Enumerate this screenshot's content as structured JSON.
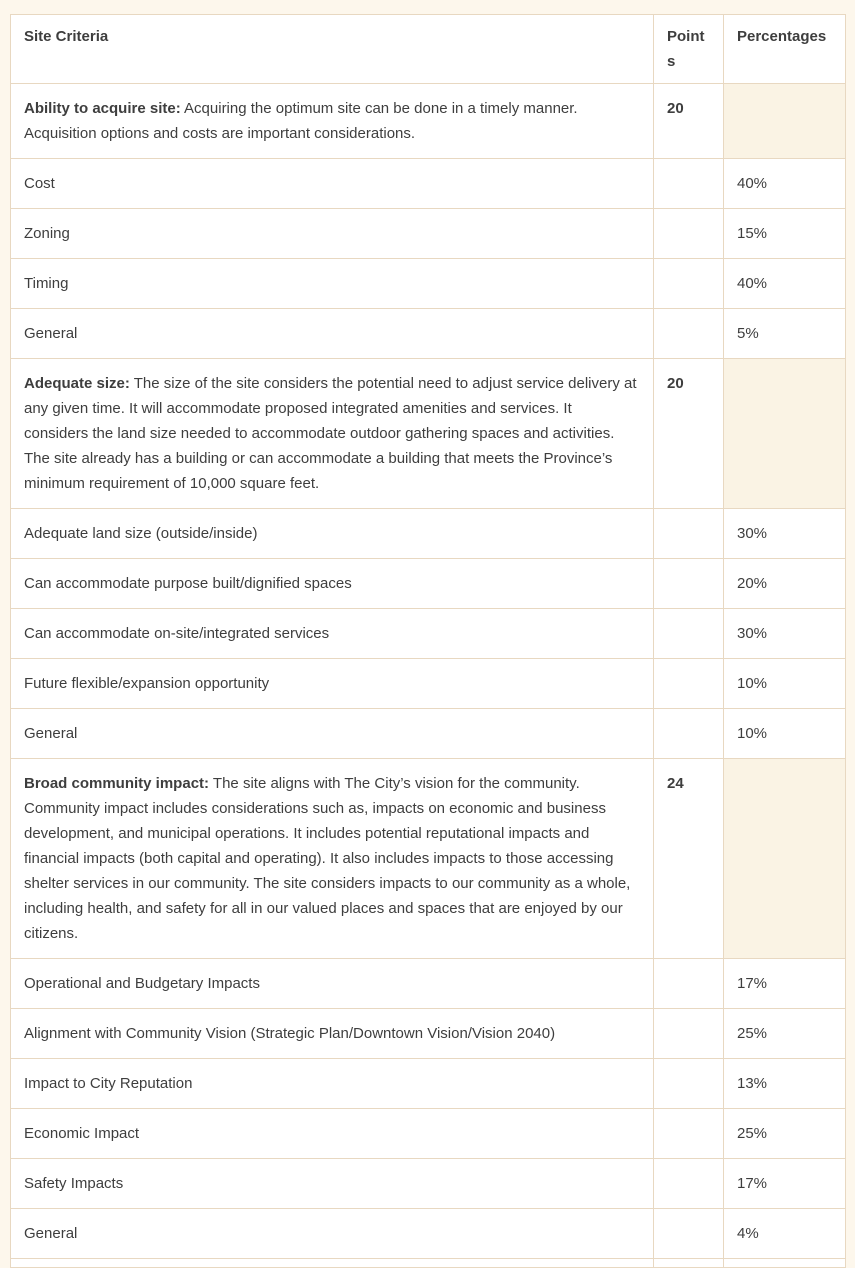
{
  "table": {
    "columns": [
      {
        "label": "Site Criteria"
      },
      {
        "label": "Points"
      },
      {
        "label": "Percentages"
      }
    ],
    "rows": [
      {
        "type": "group",
        "bold": "Ability to acquire site:",
        "text": " Acquiring the optimum site can be done in a timely manner. Acquisition options and costs are important considerations.",
        "points": "20",
        "percentage": ""
      },
      {
        "type": "sub",
        "label": "Cost",
        "percentage": "40%"
      },
      {
        "type": "sub",
        "label": "Zoning",
        "percentage": "15%"
      },
      {
        "type": "sub",
        "label": "Timing",
        "percentage": "40%"
      },
      {
        "type": "sub",
        "label": "General",
        "percentage": "5%"
      },
      {
        "type": "group",
        "bold": "Adequate size:",
        "text": " The size of the site considers the potential need to adjust service delivery at any given time. It will accommodate proposed integrated amenities and services. It considers the land size needed to accommodate outdoor gathering spaces and activities. The site already has a building or can accommodate a building that meets the Province’s minimum requirement of 10,000 square feet.",
        "points": "20",
        "percentage": ""
      },
      {
        "type": "sub",
        "label": "Adequate land size (outside/inside)",
        "percentage": "30%"
      },
      {
        "type": "sub",
        "label": "Can accommodate purpose built/dignified spaces",
        "percentage": "20%"
      },
      {
        "type": "sub",
        "label": "Can accommodate on-site/integrated services",
        "percentage": "30%"
      },
      {
        "type": "sub",
        "label": "Future flexible/expansion opportunity",
        "percentage": "10%"
      },
      {
        "type": "sub",
        "label": "General",
        "percentage": "10%"
      },
      {
        "type": "group",
        "bold": "Broad community impact:",
        "text": " The site aligns with The City’s vision for the community. Community impact includes considerations such as, impacts on economic and business development, and municipal operations. It includes potential reputational impacts and financial impacts (both capital and operating). It also includes impacts to those accessing shelter services in our community. The site considers impacts to our community as a whole, including health, and safety for all in our valued places and spaces that are enjoyed by our citizens.",
        "points": "24",
        "percentage": ""
      },
      {
        "type": "sub",
        "label": "Operational and Budgetary Impacts",
        "percentage": "17%"
      },
      {
        "type": "sub",
        "label": "Alignment with Community Vision (Strategic Plan/Downtown Vision/Vision 2040)",
        "percentage": "25%"
      },
      {
        "type": "sub",
        "label": "Impact to City Reputation",
        "percentage": "13%"
      },
      {
        "type": "sub",
        "label": "Economic Impact",
        "percentage": "25%"
      },
      {
        "type": "sub",
        "label": "Safety Impacts",
        "percentage": "17%"
      },
      {
        "type": "sub",
        "label": "General",
        "percentage": "4%"
      },
      {
        "type": "partial",
        "label": "",
        "percentage": ""
      }
    ]
  },
  "colors": {
    "page_background": "#fdf7ec",
    "cell_background": "#ffffff",
    "group_percentage_cell_background": "#faf3e4",
    "border": "#e8d8c1",
    "text": "#3e3e3e"
  }
}
